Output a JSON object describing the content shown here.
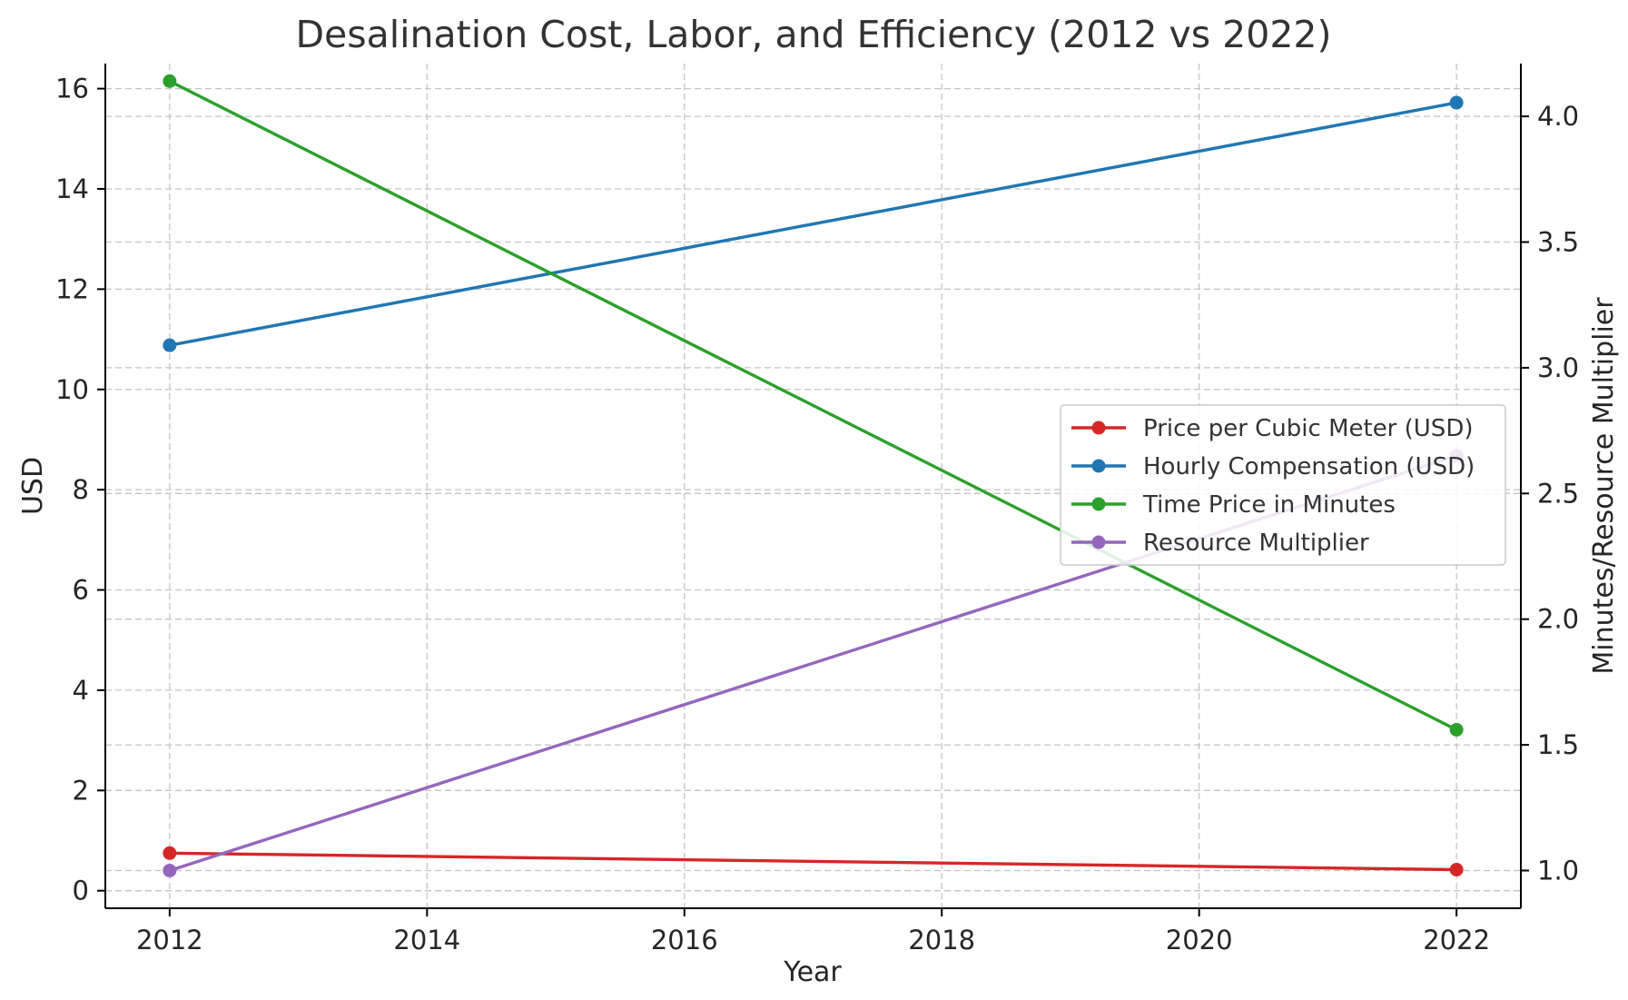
{
  "chart_data": {
    "type": "line",
    "title": "Desalination Cost, Labor, and Efficiency (2012 vs 2022)",
    "xlabel": "Year",
    "ylabel_left": "USD",
    "ylabel_right": "Minutes/Resource Multiplier",
    "x": [
      2012,
      2022
    ],
    "xlim": [
      2011.5,
      2022.5
    ],
    "xticks": [
      2012,
      2014,
      2016,
      2018,
      2020,
      2022
    ],
    "ylim_left": [
      -0.35,
      16.5
    ],
    "yticks_left": [
      0,
      2,
      4,
      6,
      8,
      10,
      12,
      14,
      16
    ],
    "ylim_right": [
      0.85,
      4.21
    ],
    "yticks_right": [
      "1.0",
      "1.5",
      "2.0",
      "2.5",
      "3.0",
      "3.5",
      "4.0"
    ],
    "grid": true,
    "legend_position": "center-right",
    "series": [
      {
        "name": "Price per Cubic Meter (USD)",
        "axis": "left",
        "color": "#d62728",
        "values": [
          0.75,
          0.42
        ]
      },
      {
        "name": "Hourly Compensation (USD)",
        "axis": "left",
        "color": "#1f77b4",
        "values": [
          10.88,
          15.72
        ]
      },
      {
        "name": "Time Price in Minutes",
        "axis": "right",
        "color": "#2ca02c",
        "values": [
          4.14,
          1.56
        ]
      },
      {
        "name": "Resource Multiplier",
        "axis": "right",
        "color": "#9467bd",
        "values": [
          1.0,
          2.65
        ]
      }
    ]
  }
}
